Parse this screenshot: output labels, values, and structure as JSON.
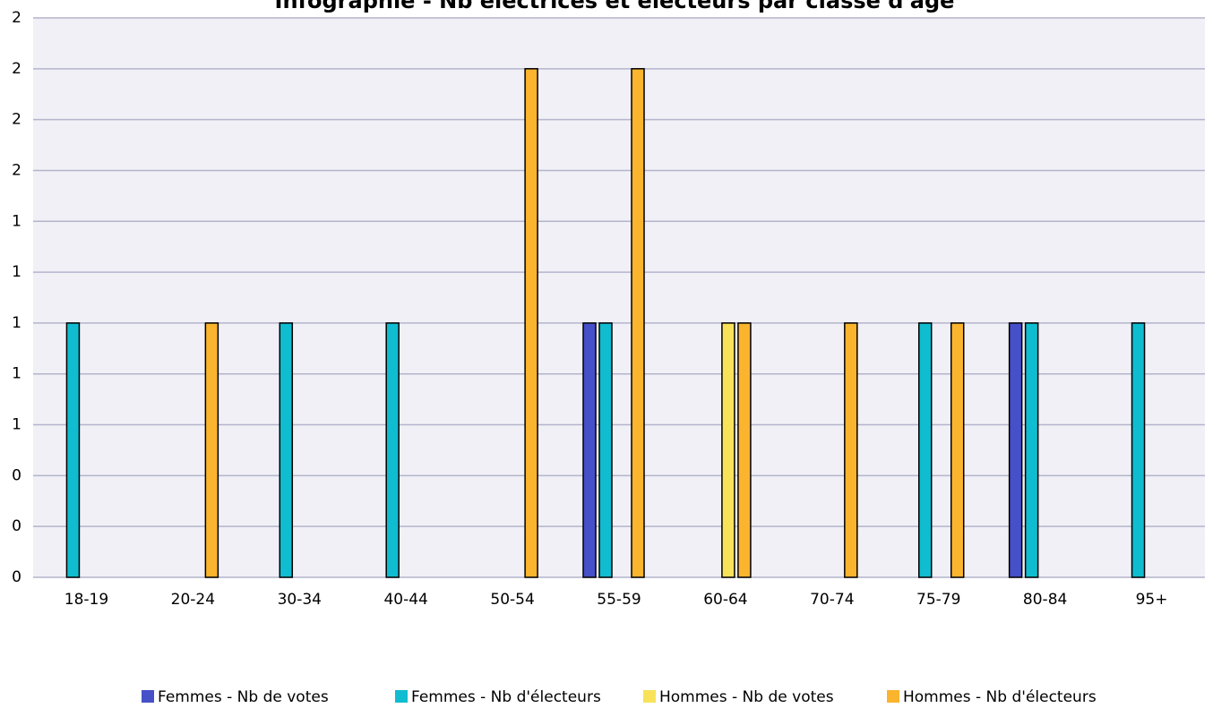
{
  "chart_data": {
    "type": "bar",
    "title": "Infographie - Nb électrices et électeurs par classe d'âge",
    "categories": [
      "18-19",
      "20-24",
      "30-34",
      "40-44",
      "50-54",
      "55-59",
      "60-64",
      "70-74",
      "75-79",
      "80-84",
      "95+"
    ],
    "series": [
      {
        "name": "Femmes - Nb de votes",
        "color": "#4650c8",
        "values": [
          0,
          0,
          0,
          0,
          0,
          1,
          0,
          0,
          0,
          1,
          0
        ]
      },
      {
        "name": "Femmes - Nb d'électeurs",
        "color": "#10bcd0",
        "values": [
          1,
          0,
          1,
          1,
          0,
          1,
          0,
          0,
          1,
          1,
          1
        ]
      },
      {
        "name": "Hommes - Nb de votes",
        "color": "#f8e25a",
        "values": [
          0,
          0,
          0,
          0,
          0,
          0,
          1,
          0,
          0,
          0,
          0
        ]
      },
      {
        "name": "Hommes - Nb d'électeurs",
        "color": "#fab42e",
        "values": [
          0,
          1,
          0,
          0,
          2,
          2,
          1,
          1,
          1,
          0,
          0
        ]
      }
    ],
    "ylim": [
      0,
      2.2
    ],
    "yticks": [
      {
        "value": 0,
        "label": "0"
      },
      {
        "value": 0.2,
        "label": "0"
      },
      {
        "value": 0.4,
        "label": "0"
      },
      {
        "value": 0.6,
        "label": "1"
      },
      {
        "value": 0.8,
        "label": "1"
      },
      {
        "value": 1,
        "label": "1"
      },
      {
        "value": 1.2,
        "label": "1"
      },
      {
        "value": 1.4,
        "label": "1"
      },
      {
        "value": 1.6,
        "label": "2"
      },
      {
        "value": 1.8,
        "label": "2"
      },
      {
        "value": 2,
        "label": "2"
      },
      {
        "value": 2.2,
        "label": "2"
      }
    ],
    "grid": true,
    "legend": "bottom"
  }
}
